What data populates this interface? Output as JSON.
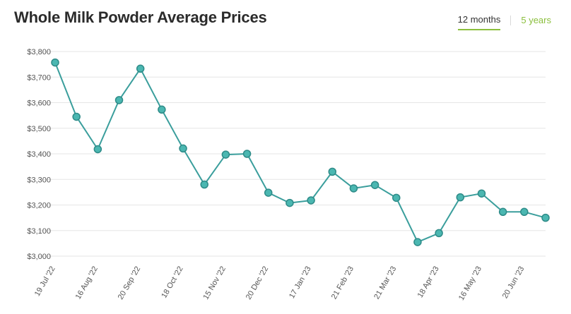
{
  "header": {
    "title": "Whole Milk Powder Average Prices",
    "tabs": [
      {
        "label": "12 months",
        "active": true
      },
      {
        "label": "5 years",
        "active": false
      }
    ]
  },
  "colors": {
    "line": "#3a9e9c",
    "marker_fill": "#4bb7b1",
    "marker_stroke": "#2e8b88",
    "gridline": "#e6e6e6",
    "accent": "#8bbf3d"
  },
  "chart_data": {
    "type": "line",
    "title": "",
    "xlabel": "",
    "ylabel": "",
    "ylim": [
      3000,
      3800
    ],
    "yticks": [
      3000,
      3100,
      3200,
      3300,
      3400,
      3500,
      3600,
      3700,
      3800
    ],
    "ytick_labels": [
      "$3,000",
      "$3,100",
      "$3,200",
      "$3,300",
      "$3,400",
      "$3,500",
      "$3,600",
      "$3,700",
      "$3,800"
    ],
    "grid": true,
    "x_tick_labels": [
      {
        "index": 0,
        "label": "19 Jul '22"
      },
      {
        "index": 2,
        "label": "16 Aug '22"
      },
      {
        "index": 4,
        "label": "20 Sep '22"
      },
      {
        "index": 6,
        "label": "18 Oct '22"
      },
      {
        "index": 8,
        "label": "15 Nov '22"
      },
      {
        "index": 10,
        "label": "20 Dec '22"
      },
      {
        "index": 12,
        "label": "17 Jan '23"
      },
      {
        "index": 14,
        "label": "21 Feb '23"
      },
      {
        "index": 16,
        "label": "21 Mar '23"
      },
      {
        "index": 18,
        "label": "18 Apr '23"
      },
      {
        "index": 20,
        "label": "16 May '23"
      },
      {
        "index": 22,
        "label": "20 Jun '23"
      }
    ],
    "series": [
      {
        "values": [
          3757,
          3545,
          3418,
          3610,
          3733,
          3573,
          3421,
          3280,
          3397,
          3400,
          3248,
          3208,
          3218,
          3330,
          3265,
          3278,
          3228,
          3055,
          3090,
          3230,
          3245,
          3173,
          3173,
          3150
        ]
      }
    ]
  }
}
